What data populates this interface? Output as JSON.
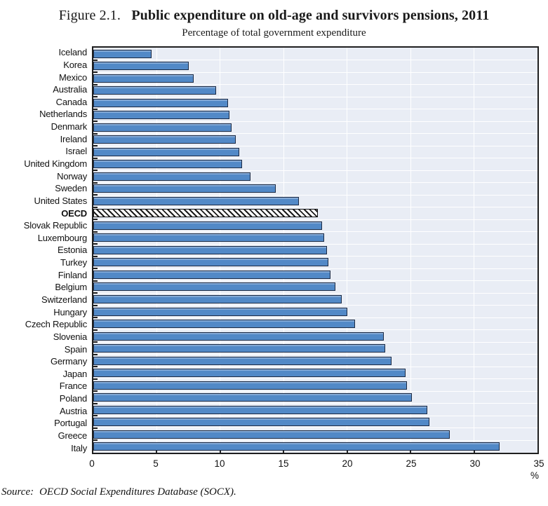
{
  "figure": {
    "label": "Figure 2.1.",
    "title": "Public expenditure on old-age and survivors pensions, 2011",
    "subtitle": "Percentage of total government expenditure",
    "source_prefix": "Source:",
    "source_text": "OECD Social Expenditures Database (SOCX).",
    "unit_label": "%"
  },
  "chart_data": {
    "type": "bar",
    "orientation": "horizontal",
    "title": "Public expenditure on old-age and survivors pensions, 2011",
    "subtitle": "Percentage of total government expenditure",
    "xlabel": "%",
    "xlim": [
      0,
      35
    ],
    "xticks": [
      0,
      5,
      10,
      15,
      20,
      25,
      30,
      35
    ],
    "grid": true,
    "legend": "none",
    "categories": [
      "Iceland",
      "Korea",
      "Mexico",
      "Australia",
      "Canada",
      "Netherlands",
      "Denmark",
      "Ireland",
      "Israel",
      "United Kingdom",
      "Norway",
      "Sweden",
      "United States",
      "OECD",
      "Slovak Republic",
      "Luxembourg",
      "Estonia",
      "Turkey",
      "Finland",
      "Belgium",
      "Switzerland",
      "Hungary",
      "Czech Republic",
      "Slovenia",
      "Spain",
      "Germany",
      "Japan",
      "France",
      "Poland",
      "Austria",
      "Portugal",
      "Greece",
      "Italy"
    ],
    "values": [
      4.6,
      7.5,
      7.9,
      9.7,
      10.6,
      10.7,
      10.9,
      11.2,
      11.5,
      11.7,
      12.4,
      14.4,
      16.2,
      17.7,
      18.0,
      18.2,
      18.4,
      18.5,
      18.7,
      19.1,
      19.6,
      20.0,
      20.6,
      22.9,
      23.0,
      23.5,
      24.6,
      24.7,
      25.1,
      26.3,
      26.5,
      28.1,
      32.0
    ],
    "highlight_category": "OECD",
    "highlight_style": "white-with-black-diagonal-hatch",
    "colors": {
      "bar_fill": "#5289C7",
      "bar_border": "#1C2B45",
      "plot_background": "#E9EDF5",
      "gridline": "#FFFFFF",
      "axis": "#1F1F1F",
      "hatch_foreground": "#1A1A1A",
      "hatch_background": "#FFFFFF"
    }
  }
}
